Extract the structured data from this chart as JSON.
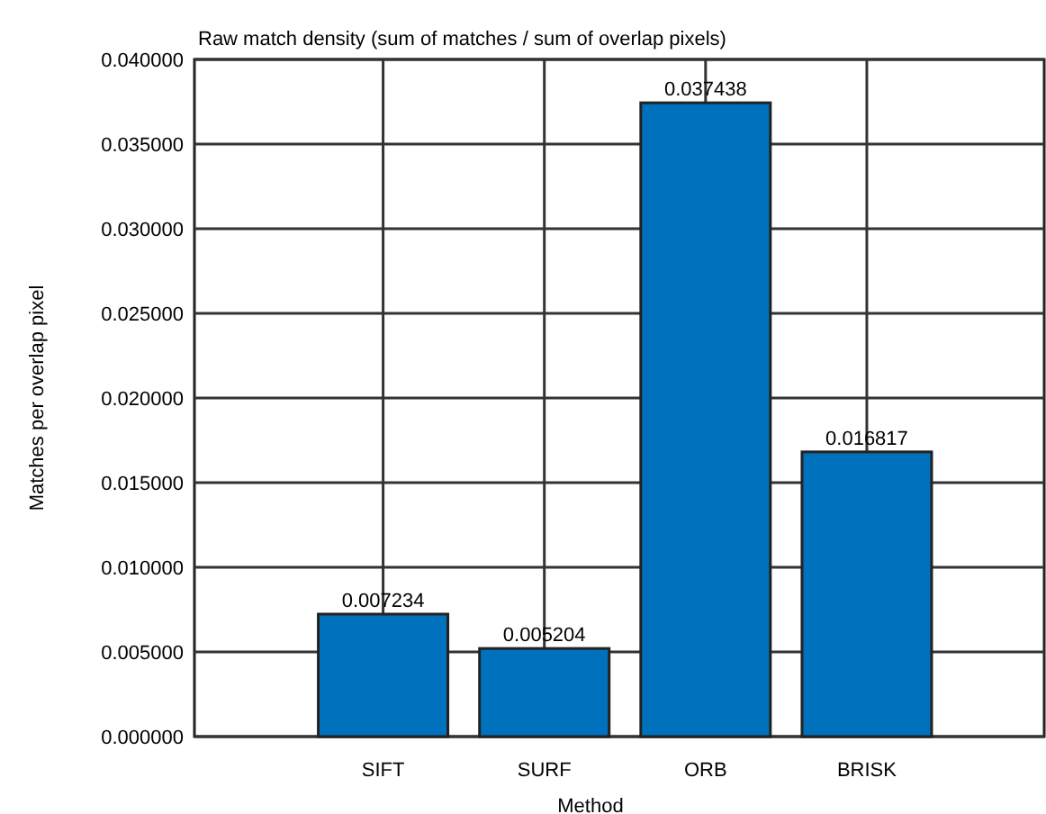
{
  "chart_data": {
    "type": "bar",
    "title": "Raw match density (sum of matches / sum of overlap pixels)",
    "xlabel": "Method",
    "ylabel": "Matches per overlap pixel",
    "categories": [
      "SIFT",
      "SURF",
      "ORB",
      "BRISK"
    ],
    "values": [
      0.007234,
      0.005204,
      0.037438,
      0.016817
    ],
    "color": "#0072bd",
    "ylim": [
      0,
      0.04
    ],
    "yticks": [
      {
        "value": 0,
        "label": "0.000000"
      },
      {
        "value": 0.005,
        "label": "0.005000"
      },
      {
        "value": 0.01,
        "label": "0.010000"
      },
      {
        "value": 0.015,
        "label": "0.015000"
      },
      {
        "value": 0.02,
        "label": "0.020000"
      },
      {
        "value": 0.025,
        "label": "0.025000"
      },
      {
        "value": 0.03,
        "label": "0.030000"
      },
      {
        "value": 0.035,
        "label": "0.035000"
      },
      {
        "value": 0.04,
        "label": "0.040000"
      }
    ],
    "grid": true,
    "data_labels": true
  }
}
